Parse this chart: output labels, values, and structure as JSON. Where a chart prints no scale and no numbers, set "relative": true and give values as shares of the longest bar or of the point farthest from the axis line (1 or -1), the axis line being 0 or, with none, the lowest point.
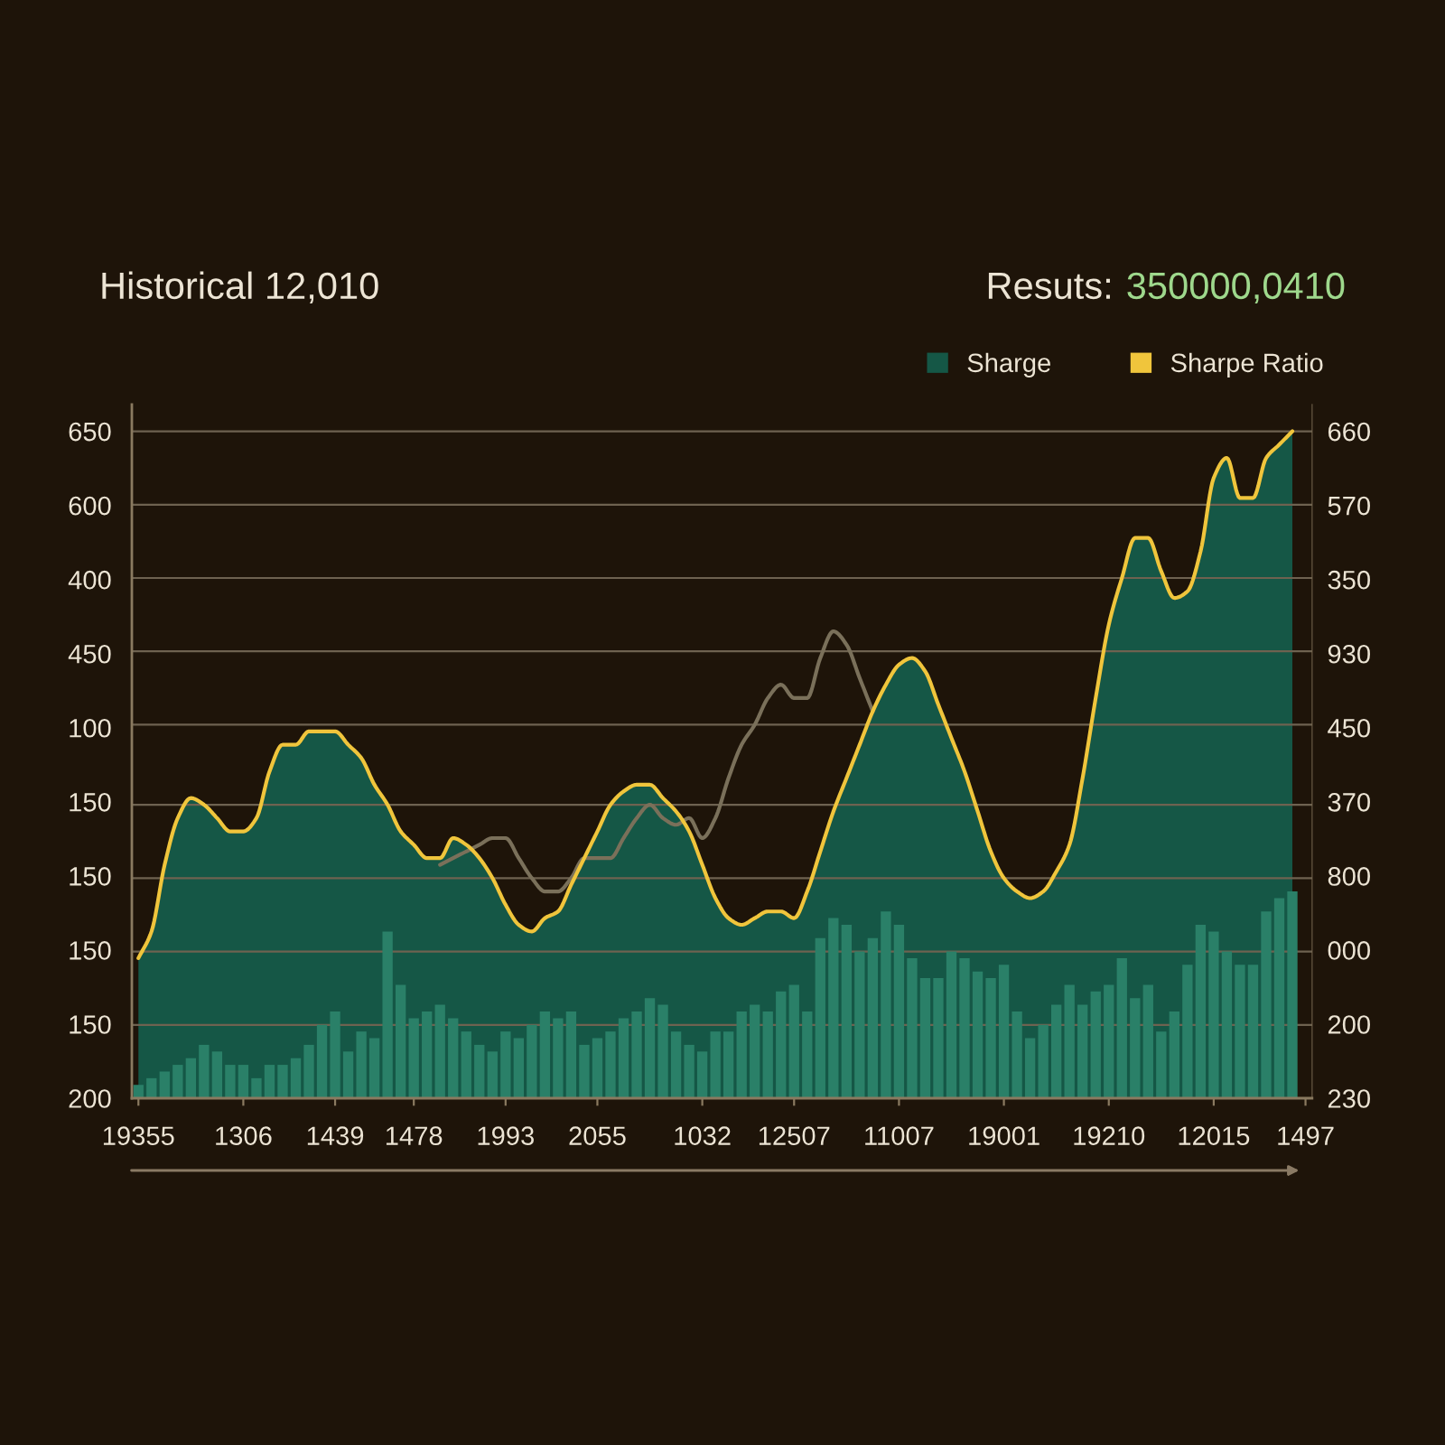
{
  "chart_data": {
    "type": "area",
    "title": "Historical 12,010",
    "annotations": [
      "Resuts:",
      "350000,0410"
    ],
    "relative": true,
    "categories": [
      "19355",
      null,
      null,
      null,
      null,
      null,
      null,
      null,
      "1306",
      null,
      null,
      null,
      null,
      null,
      null,
      "1439",
      null,
      null,
      null,
      null,
      null,
      "1478",
      null,
      null,
      null,
      null,
      null,
      null,
      "1993",
      null,
      null,
      null,
      null,
      null,
      null,
      "2055",
      null,
      null,
      null,
      null,
      null,
      null,
      null,
      "1032",
      null,
      null,
      null,
      null,
      null,
      null,
      "12507",
      null,
      null,
      null,
      null,
      null,
      null,
      null,
      "11007",
      null,
      null,
      null,
      null,
      null,
      null,
      null,
      "19001",
      null,
      null,
      null,
      null,
      null,
      null,
      null,
      "19210",
      null,
      null,
      null,
      null,
      null,
      null,
      null,
      "12015",
      null,
      null,
      null,
      null,
      null,
      null,
      "1497"
    ],
    "y_categories": [
      "650",
      "600",
      "400",
      "450",
      "100",
      "150",
      "150",
      "150",
      "150",
      "200"
    ],
    "y2_categories": [
      "660",
      "570",
      "350",
      "930",
      "450",
      "370",
      "800",
      "000",
      "200",
      "230"
    ],
    "ref_lines": [
      {
        "axis": "y",
        "value": 0.11,
        "color": "#6e6250"
      },
      {
        "axis": "y",
        "value": 0.22,
        "color": "#6e6250"
      },
      {
        "axis": "y",
        "value": 0.33,
        "color": "#6e6250"
      },
      {
        "axis": "y",
        "value": 0.44,
        "color": "#6e6250"
      },
      {
        "axis": "y",
        "value": 0.56,
        "color": "#6e6250"
      },
      {
        "axis": "y",
        "value": 0.67,
        "color": "#6e6250"
      },
      {
        "axis": "y",
        "value": 0.78,
        "color": "#6e6250"
      },
      {
        "axis": "y",
        "value": 0.89,
        "color": "#6e6250"
      },
      {
        "axis": "y",
        "value": 1.0,
        "color": "#6e6250"
      }
    ],
    "legend": "top right",
    "series": [
      {
        "name": "Sharge",
        "color": "#155746",
        "values": [
          0.21,
          0.25,
          0.35,
          0.42,
          0.45,
          0.44,
          0.42,
          0.4,
          0.4,
          0.42,
          0.49,
          0.53,
          0.53,
          0.55,
          0.55,
          0.55,
          0.53,
          0.51,
          0.47,
          0.44,
          0.4,
          0.38,
          0.36,
          0.36,
          0.39,
          0.38,
          0.36,
          0.33,
          0.29,
          0.26,
          0.25,
          0.27,
          0.28,
          0.32,
          0.36,
          0.4,
          0.44,
          0.46,
          0.47,
          0.47,
          0.45,
          0.43,
          0.4,
          0.35,
          0.3,
          0.27,
          0.26,
          0.27,
          0.28,
          0.28,
          0.27,
          0.31,
          0.37,
          0.43,
          0.48,
          0.53,
          0.58,
          0.62,
          0.65,
          0.66,
          0.64,
          0.59,
          0.54,
          0.49,
          0.43,
          0.37,
          0.33,
          0.31,
          0.3,
          0.31,
          0.34,
          0.38,
          0.48,
          0.6,
          0.71,
          0.78,
          0.84,
          0.84,
          0.79,
          0.75,
          0.76,
          0.82,
          0.93,
          0.96,
          0.9,
          0.9,
          0.96,
          0.98,
          1.0,
          null
        ]
      },
      {
        "type": "bar",
        "color": "#2a8068",
        "values": [
          0.02,
          0.03,
          0.04,
          0.05,
          0.06,
          0.08,
          0.07,
          0.05,
          0.05,
          0.03,
          0.05,
          0.05,
          0.06,
          0.08,
          0.11,
          0.13,
          0.07,
          0.1,
          0.09,
          0.25,
          0.17,
          0.12,
          0.13,
          0.14,
          0.12,
          0.1,
          0.08,
          0.07,
          0.1,
          0.09,
          0.11,
          0.13,
          0.12,
          0.13,
          0.08,
          0.09,
          0.1,
          0.12,
          0.13,
          0.15,
          0.14,
          0.1,
          0.08,
          0.07,
          0.1,
          0.1,
          0.13,
          0.14,
          0.13,
          0.16,
          0.17,
          0.13,
          0.24,
          0.27,
          0.26,
          0.22,
          0.24,
          0.28,
          0.26,
          0.21,
          0.18,
          0.18,
          0.22,
          0.21,
          0.19,
          0.18,
          0.2,
          0.13,
          0.09,
          0.11,
          0.14,
          0.17,
          0.14,
          0.16,
          0.17,
          0.21,
          0.15,
          0.17,
          0.1,
          0.13,
          0.2,
          0.26,
          0.25,
          0.22,
          0.2,
          0.2,
          0.28,
          0.3,
          0.31,
          null
        ]
      },
      {
        "type": "line",
        "color": "#7a705a",
        "values": [
          null,
          null,
          null,
          null,
          null,
          null,
          null,
          null,
          null,
          null,
          null,
          null,
          null,
          null,
          null,
          null,
          null,
          null,
          null,
          null,
          null,
          null,
          null,
          0.35,
          0.36,
          0.37,
          0.38,
          0.39,
          0.39,
          0.36,
          0.33,
          0.31,
          0.31,
          0.33,
          0.36,
          0.36,
          0.36,
          0.39,
          0.42,
          0.44,
          0.42,
          0.41,
          0.42,
          0.39,
          0.42,
          0.48,
          0.53,
          0.56,
          0.6,
          0.62,
          0.6,
          0.6,
          0.66,
          0.7,
          0.68,
          0.63,
          0.58,
          null,
          null,
          null,
          null,
          null,
          null,
          null,
          null,
          null,
          null,
          null,
          null,
          null,
          null,
          null,
          null,
          null,
          null,
          null,
          null,
          null,
          null,
          null,
          null,
          null,
          null,
          null,
          null,
          null,
          null,
          null,
          null,
          null
        ]
      },
      {
        "name": "Sharpe Ratio",
        "type": "line",
        "color": "#f0c53c",
        "values": [
          0.21,
          0.25,
          0.35,
          0.42,
          0.45,
          0.44,
          0.42,
          0.4,
          0.4,
          0.42,
          0.49,
          0.53,
          0.53,
          0.55,
          0.55,
          0.55,
          0.53,
          0.51,
          0.47,
          0.44,
          0.4,
          0.38,
          0.36,
          0.36,
          0.39,
          0.38,
          0.36,
          0.33,
          0.29,
          0.26,
          0.25,
          0.27,
          0.28,
          0.32,
          0.36,
          0.4,
          0.44,
          0.46,
          0.47,
          0.47,
          0.45,
          0.43,
          0.4,
          0.35,
          0.3,
          0.27,
          0.26,
          0.27,
          0.28,
          0.28,
          0.27,
          0.31,
          0.37,
          0.43,
          0.48,
          0.53,
          0.58,
          0.62,
          0.65,
          0.66,
          0.64,
          0.59,
          0.54,
          0.49,
          0.43,
          0.37,
          0.33,
          0.31,
          0.3,
          0.31,
          0.34,
          0.38,
          0.48,
          0.6,
          0.71,
          0.78,
          0.84,
          0.84,
          0.79,
          0.75,
          0.76,
          0.82,
          0.93,
          0.96,
          0.9,
          0.9,
          0.96,
          0.98,
          1.0,
          null
        ]
      }
    ]
  }
}
